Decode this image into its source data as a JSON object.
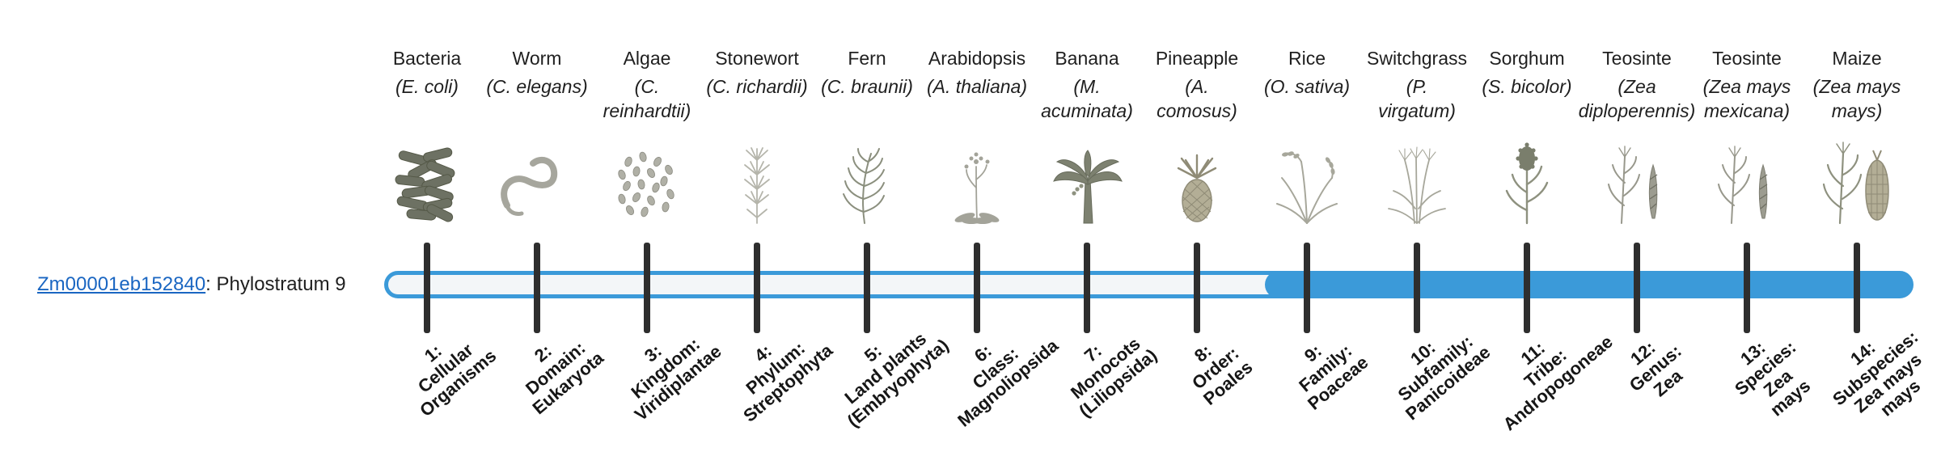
{
  "page": {
    "background": "#ffffff"
  },
  "gene": {
    "id": "Zm00001eb152840",
    "label_suffix": ": Phylostratum 9",
    "link_color": "#1a66c2"
  },
  "bar": {
    "outline_color": "#3b9ad9",
    "track_fill": "#f3f6f8",
    "fill_color": "#3b9ad9",
    "tick_color": "#2e2e2e",
    "filled_from_stratum": 9,
    "total_strata": 14
  },
  "strata": [
    {
      "number": 1,
      "organism": "Bacteria",
      "species": "(E. coli)",
      "icon": "bacteria-icon",
      "label": "1:\nCellular\nOrganisms"
    },
    {
      "number": 2,
      "organism": "Worm",
      "species": "(C. elegans)",
      "icon": "worm-icon",
      "label": "2:\nDomain:\nEukaryota"
    },
    {
      "number": 3,
      "organism": "Algae",
      "species": "(C.\nreinhardtii)",
      "icon": "algae-icon",
      "label": "3:\nKingdom:\nViridiplantae"
    },
    {
      "number": 4,
      "organism": "Stonewort",
      "species": "(C. richardii)",
      "icon": "stonewort-icon",
      "label": "4:\nPhylum:\nStreptophyta"
    },
    {
      "number": 5,
      "organism": "Fern",
      "species": "(C. braunii)",
      "icon": "fern-icon",
      "label": "5:\nLand plants\n(Embryophyta)"
    },
    {
      "number": 6,
      "organism": "Arabidopsis",
      "species": "(A. thaliana)",
      "icon": "arabidopsis-icon",
      "label": "6:\nClass:\nMagnoliopsida"
    },
    {
      "number": 7,
      "organism": "Banana",
      "species": "(M.\nacuminata)",
      "icon": "banana-icon",
      "label": "7:\nMonocots\n(Liliopsida)"
    },
    {
      "number": 8,
      "organism": "Pineapple",
      "species": "(A.\ncomosus)",
      "icon": "pineapple-icon",
      "label": "8:\nOrder:\nPoales"
    },
    {
      "number": 9,
      "organism": "Rice",
      "species": "(O. sativa)",
      "icon": "rice-icon",
      "label": "9:\nFamily:\nPoaceae"
    },
    {
      "number": 10,
      "organism": "Switchgrass",
      "species": "(P.\nvirgatum)",
      "icon": "switchgrass-icon",
      "label": "10:\nSubfamily:\nPanicoideae"
    },
    {
      "number": 11,
      "organism": "Sorghum",
      "species": "(S. bicolor)",
      "icon": "sorghum-icon",
      "label": "11:\nTribe:\nAndropogoneae"
    },
    {
      "number": 12,
      "organism": "Teosinte",
      "species": "(Zea\ndiploperennis)",
      "icon": "teosinte-icon",
      "label": "12:\nGenus:\nZea"
    },
    {
      "number": 13,
      "organism": "Teosinte",
      "species": "(Zea mays\nmexicana)",
      "icon": "teosinte-icon",
      "label": "13:\nSpecies:\nZea\nmays"
    },
    {
      "number": 14,
      "organism": "Maize",
      "species": "(Zea mays\nmays)",
      "icon": "maize-icon",
      "label": "14:\nSubspecies:\nZea mays\nmays"
    }
  ]
}
